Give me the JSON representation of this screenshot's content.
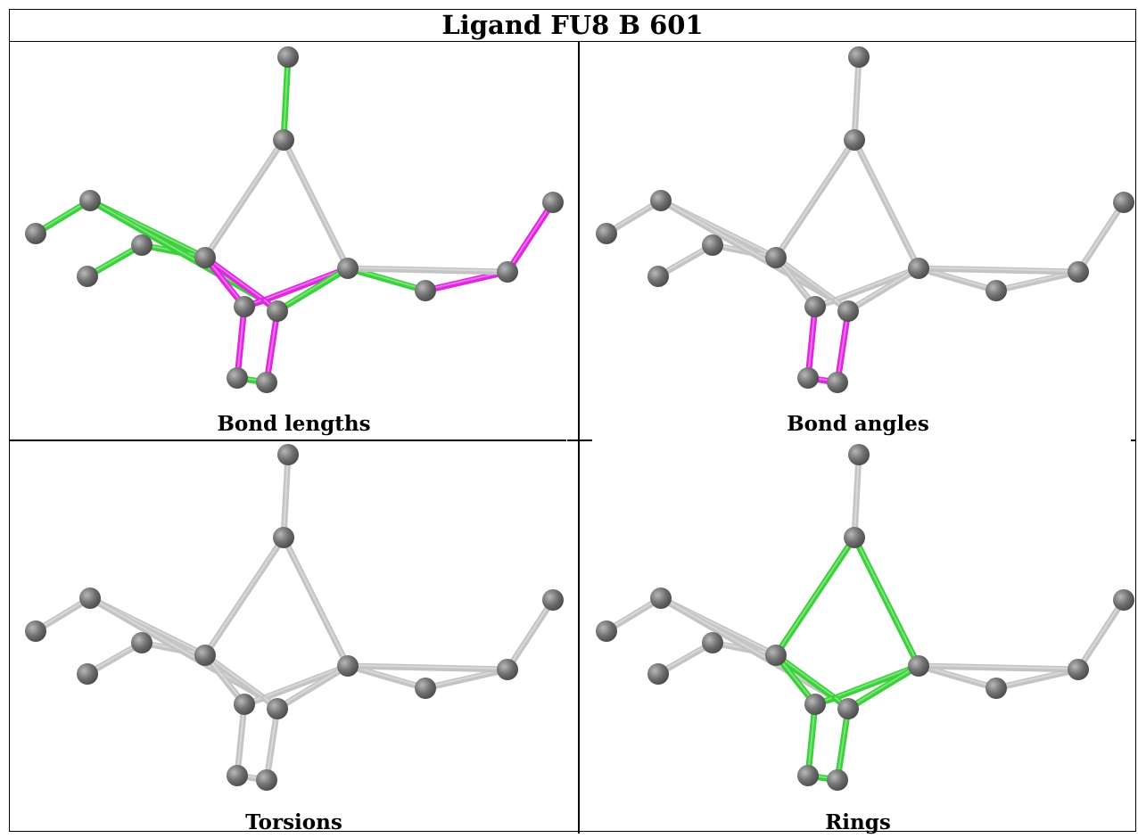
{
  "title": "Ligand FU8 B 601",
  "colors": {
    "atom": "#707070",
    "bond_default": "#c4c4c4",
    "bond_green": "#3ad13a",
    "bond_magenta": "#e026e0"
  },
  "panels": [
    {
      "caption": "Bond lengths",
      "bonds": {
        "top-C2": "green",
        "C1-C4": "green",
        "C1-C5": "green",
        "C2-C6": "green",
        "C2-C3": "default",
        "C3-C8": "default",
        "C6-C7": "green",
        "C7-C8": "green",
        "C8-C9": "magenta",
        "C9-R1": "magenta",
        "C3-C10": "magenta",
        "C3-C11": "magenta",
        "C10-C12": "magenta",
        "C11-C13": "magenta",
        "C12-C13": "green",
        "C6-C9": "green",
        "C4-C9": "green",
        "C5-C8": "green"
      }
    },
    {
      "caption": "Bond angles",
      "bonds": {
        "C10-C12": "magenta",
        "C11-C13": "magenta",
        "C12-C13": "magenta"
      }
    },
    {
      "caption": "Torsions",
      "bonds": {}
    },
    {
      "caption": "Rings",
      "bonds": {
        "C2-C3": "green",
        "C3-C8": "green",
        "C2-C6": "green",
        "C6-C11": "green",
        "C8-C11": "green",
        "C6-C10": "green",
        "C10-C12": "green",
        "C11-C13": "green",
        "C12-C13": "green",
        "C10-C11": "green"
      }
    }
  ]
}
